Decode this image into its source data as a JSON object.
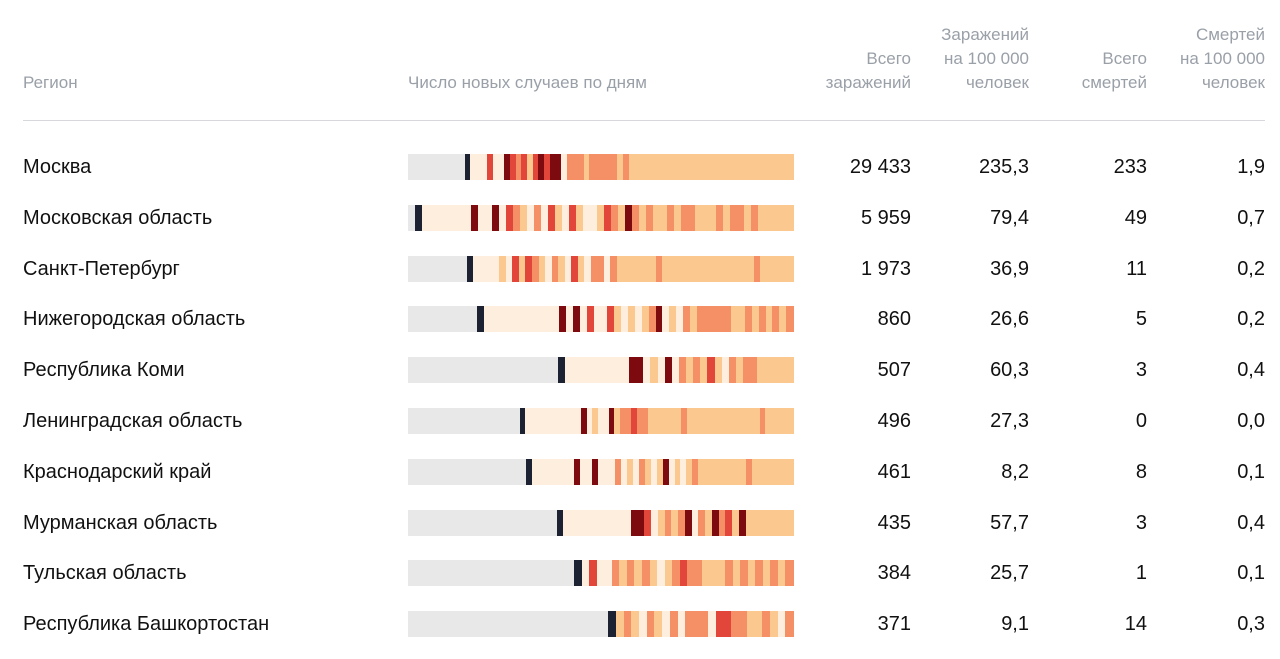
{
  "header": {
    "region": "Регион",
    "daily": "Число новых случаев по дням",
    "total_infections": [
      "Всего",
      "заражений"
    ],
    "infections_per_100k": [
      "Заражений",
      "на 100 000",
      "человек"
    ],
    "total_deaths": [
      "Всего",
      "смертей"
    ],
    "deaths_per_100k": [
      "Смертей",
      "на 100 000",
      "человек"
    ]
  },
  "colors": {
    "none": "#e8e8e8",
    "first_case": "#1d2233",
    "l1": "#fdeedd",
    "l2": "#fbc98f",
    "l3": "#f59066",
    "l4": "#e2453a",
    "l5": "#7c0a0e"
  },
  "rows": [
    {
      "region": "Москва",
      "total": "29 433",
      "per100k": "235,3",
      "deaths": "233",
      "deaths_per100k": "1,9",
      "daily_pattern": "0000000000D111411543424545513332333332322222222222222222222222222222"
    },
    {
      "region": "Московская область",
      "total": "5 959",
      "per100k": "79,4",
      "deaths": "49",
      "deaths_per100k": "0,7",
      "daily_pattern": "0D11111115115143213142142112432532322323322232332322222"
    },
    {
      "region": "Санкт-Петербург",
      "total": "1 973",
      "per100k": "36,9",
      "deaths": "11",
      "deaths_per100k": "0,2",
      "daily_pattern": "000000000D1111214243213214213313222222322222222222222322222"
    },
    {
      "region": "Нижегородская область",
      "total": "860",
      "per100k": "26,6",
      "deaths": "5",
      "deaths_per100k": "0,2",
      "daily_pattern": "0000000000D111111111115151411421212351213233333223232323"
    },
    {
      "region": "Республика Коми",
      "total": "507",
      "per100k": "60,3",
      "deaths": "3",
      "deaths_per100k": "0,4",
      "daily_pattern": "000000000000000000000D11111111155121513232421323322222"
    },
    {
      "region": "Ленинградская область",
      "total": "496",
      "per100k": "27,3",
      "deaths": "0",
      "deaths_per100k": "0,0",
      "daily_pattern": "00000000000000000000D111111111151211523343322222232222222222222322222"
    },
    {
      "region": "Краснодарский край",
      "total": "461",
      "per100k": "8,2",
      "deaths": "8",
      "deaths_per100k": "0,1",
      "daily_pattern": "00000000000000000000D11111115115111312132125121232222222232222222"
    },
    {
      "region": "Мурманская область",
      "total": "435",
      "per100k": "57,7",
      "deaths": "3",
      "deaths_per100k": "0,4",
      "daily_pattern": "0000000000000000000000D1111111111554123235132534252222222"
    },
    {
      "region": "Тульская область",
      "total": "384",
      "per100k": "25,7",
      "deaths": "1",
      "deaths_per100k": "0,1",
      "daily_pattern": "0000000000000000000000D1411323232123433222323232323"
    },
    {
      "region": "Республика Башкортостан",
      "total": "371",
      "per100k": "9,1",
      "deaths": "14",
      "deaths_per100k": "0,3",
      "daily_pattern": "00000000000000000000000000D23213213133314433223213"
    }
  ]
}
